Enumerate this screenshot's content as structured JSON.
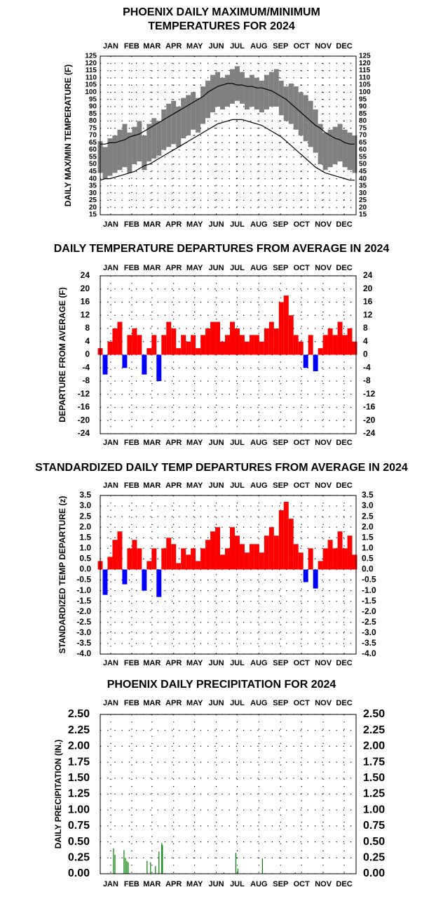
{
  "chart_data": [
    {
      "type": "line",
      "title": [
        "PHOENIX DAILY MAXIMUM/MINIMUM",
        "TEMPERATURES FOR 2024"
      ],
      "ylabel": "DAILY MAX/MIN TEMPERATURE (F)",
      "xlim": [
        1,
        367
      ],
      "xticks": [
        {
          "value": 16,
          "label": "JAN"
        },
        {
          "value": 46,
          "label": "FEB"
        },
        {
          "value": 75,
          "label": "MAR"
        },
        {
          "value": 106,
          "label": "APR"
        },
        {
          "value": 136,
          "label": "MAY"
        },
        {
          "value": 167,
          "label": "JUN"
        },
        {
          "value": 197,
          "label": "JUL"
        },
        {
          "value": 228,
          "label": "AUG"
        },
        {
          "value": 259,
          "label": "SEP"
        },
        {
          "value": 289,
          "label": "OCT"
        },
        {
          "value": 320,
          "label": "NOV"
        },
        {
          "value": 350,
          "label": "DEC"
        }
      ],
      "ylim": [
        15,
        125
      ],
      "yticks": [
        15,
        20,
        25,
        30,
        35,
        40,
        45,
        50,
        55,
        60,
        65,
        70,
        75,
        80,
        85,
        90,
        95,
        100,
        105,
        110,
        115,
        120,
        125
      ],
      "grid": true,
      "x": [
        1,
        8,
        15,
        22,
        29,
        36,
        43,
        50,
        57,
        64,
        71,
        78,
        85,
        92,
        99,
        106,
        113,
        120,
        127,
        134,
        141,
        148,
        155,
        162,
        169,
        176,
        183,
        190,
        197,
        204,
        211,
        218,
        225,
        232,
        239,
        246,
        253,
        260,
        267,
        274,
        281,
        288,
        295,
        302,
        309,
        316,
        323,
        330,
        337,
        344,
        351,
        358,
        365
      ],
      "series": [
        {
          "color": "#808080",
          "draw": "band",
          "values": [
            66,
            62,
            68,
            70,
            74,
            78,
            72,
            76,
            80,
            70,
            78,
            82,
            80,
            88,
            92,
            94,
            90,
            96,
            98,
            100,
            96,
            104,
            108,
            112,
            114,
            110,
            112,
            116,
            118,
            114,
            110,
            112,
            110,
            108,
            112,
            114,
            116,
            108,
            104,
            106,
            104,
            100,
            98,
            94,
            88,
            78,
            72,
            74,
            76,
            78,
            74,
            72,
            70
          ]
        },
        {
          "color": "#808080",
          "draw": "band",
          "values": [
            44,
            40,
            42,
            44,
            46,
            48,
            44,
            50,
            52,
            46,
            52,
            54,
            56,
            60,
            62,
            64,
            62,
            68,
            70,
            74,
            72,
            78,
            82,
            86,
            90,
            88,
            90,
            92,
            94,
            92,
            88,
            90,
            88,
            86,
            88,
            90,
            90,
            84,
            80,
            78,
            74,
            70,
            66,
            62,
            58,
            50,
            46,
            48,
            50,
            52,
            48,
            46,
            44
          ]
        },
        {
          "color": "#000000",
          "draw": "line",
          "values": [
            64,
            64,
            65,
            65,
            66,
            67,
            69,
            70,
            71,
            73,
            75,
            77,
            79,
            81,
            83,
            85,
            87,
            89,
            91,
            93,
            95,
            97,
            100,
            102,
            104,
            105,
            106,
            106,
            105,
            105,
            104,
            104,
            103,
            103,
            102,
            101,
            99,
            97,
            95,
            92,
            89,
            86,
            83,
            80,
            77,
            75,
            72,
            70,
            68,
            67,
            65,
            64,
            64
          ]
        },
        {
          "color": "#000000",
          "draw": "line",
          "values": [
            39,
            40,
            40,
            41,
            42,
            43,
            44,
            45,
            47,
            49,
            50,
            52,
            54,
            56,
            58,
            60,
            62,
            64,
            66,
            68,
            70,
            72,
            74,
            76,
            78,
            79,
            80,
            81,
            81,
            81,
            80,
            79,
            78,
            77,
            75,
            73,
            71,
            69,
            66,
            63,
            60,
            57,
            54,
            51,
            48,
            46,
            44,
            43,
            42,
            41,
            40,
            39,
            39
          ]
        }
      ]
    },
    {
      "type": "bar",
      "title": "DAILY TEMPERATURE DEPARTURES FROM AVERAGE IN 2024",
      "ylabel": "DEPARTURE FROM AVERAGE (F)",
      "xlim": [
        1,
        367
      ],
      "xticks": [
        {
          "value": 16,
          "label": "JAN"
        },
        {
          "value": 46,
          "label": "FEB"
        },
        {
          "value": 75,
          "label": "MAR"
        },
        {
          "value": 106,
          "label": "APR"
        },
        {
          "value": 136,
          "label": "MAY"
        },
        {
          "value": 167,
          "label": "JUN"
        },
        {
          "value": 197,
          "label": "JUL"
        },
        {
          "value": 228,
          "label": "AUG"
        },
        {
          "value": 259,
          "label": "SEP"
        },
        {
          "value": 289,
          "label": "OCT"
        },
        {
          "value": 320,
          "label": "NOV"
        },
        {
          "value": 350,
          "label": "DEC"
        }
      ],
      "ylim": [
        -24,
        24
      ],
      "yticks": [
        -24,
        -20,
        -16,
        -12,
        -8,
        -4,
        0,
        4,
        8,
        12,
        16,
        20,
        24
      ],
      "grid": true,
      "positive_color": "#ff0000",
      "negative_color": "#0000ff",
      "x": [
        1,
        8,
        15,
        22,
        29,
        36,
        43,
        50,
        57,
        64,
        71,
        78,
        85,
        92,
        99,
        106,
        113,
        120,
        127,
        134,
        141,
        148,
        155,
        162,
        169,
        176,
        183,
        190,
        197,
        204,
        211,
        218,
        225,
        232,
        239,
        246,
        253,
        260,
        267,
        274,
        281,
        288,
        295,
        302,
        309,
        316,
        323,
        330,
        337,
        344,
        351,
        358,
        365
      ],
      "values": [
        2,
        -6,
        4,
        8,
        10,
        -4,
        6,
        8,
        6,
        -6,
        2,
        6,
        -8,
        6,
        10,
        8,
        2,
        6,
        4,
        6,
        2,
        6,
        8,
        10,
        10,
        4,
        6,
        10,
        8,
        6,
        4,
        6,
        6,
        4,
        8,
        10,
        8,
        16,
        18,
        12,
        6,
        4,
        -4,
        6,
        -5,
        2,
        6,
        8,
        6,
        10,
        6,
        8,
        4
      ]
    },
    {
      "type": "bar",
      "title": "STANDARDIZED DAILY TEMP DEPARTURES FROM AVERAGE IN 2024",
      "ylabel": "STANDARDIZED TEMP DEPARTURE (z)",
      "xlim": [
        1,
        367
      ],
      "xticks": [
        {
          "value": 16,
          "label": "JAN"
        },
        {
          "value": 46,
          "label": "FEB"
        },
        {
          "value": 75,
          "label": "MAR"
        },
        {
          "value": 106,
          "label": "APR"
        },
        {
          "value": 136,
          "label": "MAY"
        },
        {
          "value": 167,
          "label": "JUN"
        },
        {
          "value": 197,
          "label": "JUL"
        },
        {
          "value": 228,
          "label": "AUG"
        },
        {
          "value": 259,
          "label": "SEP"
        },
        {
          "value": 289,
          "label": "OCT"
        },
        {
          "value": 320,
          "label": "NOV"
        },
        {
          "value": 350,
          "label": "DEC"
        }
      ],
      "ylim": [
        -4,
        3.5
      ],
      "yticks": [
        {
          "value": -4,
          "label": "-4.0"
        },
        -3.5,
        {
          "value": -3,
          "label": "-3.0"
        },
        -2.5,
        {
          "value": -2,
          "label": "-2.0"
        },
        -1.5,
        {
          "value": -1,
          "label": "-1.0"
        },
        -0.5,
        {
          "value": 0,
          "label": "0.0"
        },
        0.5,
        {
          "value": 1,
          "label": "1.0"
        },
        1.5,
        {
          "value": 2,
          "label": "2.0"
        },
        2.5,
        {
          "value": 3,
          "label": "3.0"
        },
        3.5
      ],
      "grid": true,
      "positive_color": "#ff0000",
      "negative_color": "#0000ff",
      "x": [
        1,
        8,
        15,
        22,
        29,
        36,
        43,
        50,
        57,
        64,
        71,
        78,
        85,
        92,
        99,
        106,
        113,
        120,
        127,
        134,
        141,
        148,
        155,
        162,
        169,
        176,
        183,
        190,
        197,
        204,
        211,
        218,
        225,
        232,
        239,
        246,
        253,
        260,
        267,
        274,
        281,
        288,
        295,
        302,
        309,
        316,
        323,
        330,
        337,
        344,
        351,
        358,
        365
      ],
      "values": [
        0.4,
        -1.2,
        0.6,
        1.4,
        1.8,
        -0.7,
        1,
        1.4,
        1,
        -1,
        0.4,
        1,
        -1.3,
        1,
        1.5,
        1.2,
        0.3,
        1,
        0.7,
        1,
        0.4,
        1,
        1.4,
        1.8,
        2,
        0.7,
        1,
        2,
        1.6,
        1.2,
        0.8,
        1.2,
        1.2,
        0.8,
        1.6,
        2,
        1.6,
        2.8,
        3.2,
        2.4,
        1.2,
        0.8,
        -0.6,
        1,
        -0.9,
        0.4,
        1,
        1.4,
        1,
        1.8,
        1,
        1.6,
        0.7
      ]
    },
    {
      "type": "bar",
      "title": "PHOENIX DAILY PRECIPITATION FOR 2024",
      "ylabel": "DAILY PRECIPITATION (IN.)",
      "xlim": [
        1,
        367
      ],
      "xticks": [
        {
          "value": 16,
          "label": "JAN"
        },
        {
          "value": 46,
          "label": "FEB"
        },
        {
          "value": 75,
          "label": "MAR"
        },
        {
          "value": 106,
          "label": "APR"
        },
        {
          "value": 136,
          "label": "MAY"
        },
        {
          "value": 167,
          "label": "JUN"
        },
        {
          "value": 197,
          "label": "JUL"
        },
        {
          "value": 228,
          "label": "AUG"
        },
        {
          "value": 259,
          "label": "SEP"
        },
        {
          "value": 289,
          "label": "OCT"
        },
        {
          "value": 320,
          "label": "NOV"
        },
        {
          "value": 350,
          "label": "DEC"
        }
      ],
      "ylim": [
        0,
        2.5
      ],
      "yticks": [
        {
          "value": 0,
          "label": "0.00"
        },
        0.25,
        {
          "value": 0.5,
          "label": "0.50"
        },
        0.75,
        {
          "value": 1,
          "label": "1.00"
        },
        1.25,
        {
          "value": 1.5,
          "label": "1.50"
        },
        1.75,
        {
          "value": 2,
          "label": "2.00"
        },
        2.25,
        {
          "value": 2.5,
          "label": "2.50"
        }
      ],
      "grid": true,
      "positive_color": "#008000",
      "negative_color": "#008000",
      "x": [
        20,
        22,
        35,
        37,
        39,
        41,
        68,
        73,
        80,
        85,
        89,
        90,
        178,
        195,
        198,
        233,
        280
      ],
      "values": [
        0.4,
        0.3,
        0.37,
        0.25,
        0.2,
        0.18,
        0.2,
        0.18,
        0.12,
        0.35,
        0.48,
        0.45,
        0.02,
        0.33,
        0.08,
        0.24,
        0.02
      ]
    }
  ]
}
